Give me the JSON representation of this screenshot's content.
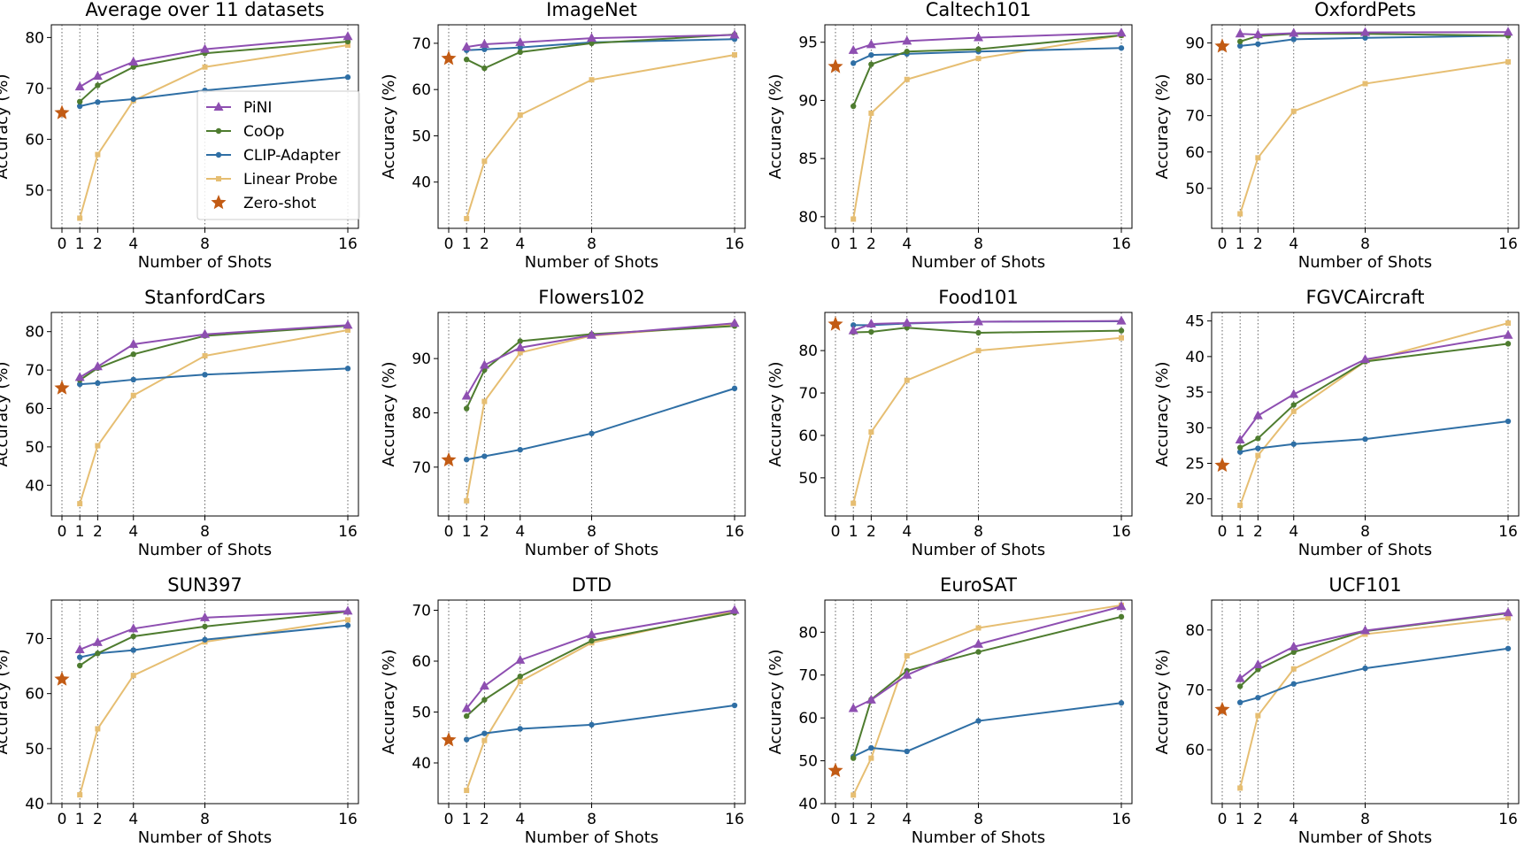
{
  "figure": {
    "x_ticks": [
      0,
      1,
      2,
      4,
      8,
      16
    ],
    "xlabel": "Number of Shots",
    "ylabel": "Accuracy (%)",
    "series_styles": {
      "PiNI": {
        "color": "#8e4fb1",
        "marker": "triangle"
      },
      "CoOp": {
        "color": "#4e7c2f",
        "marker": "circle"
      },
      "CLIP-Adapter": {
        "color": "#2f6fa5",
        "marker": "circle"
      },
      "Linear Probe": {
        "color": "#e6be72",
        "marker": "square"
      },
      "Zero-shot": {
        "color": "#c25b14",
        "marker": "star"
      }
    },
    "legend_labels": [
      "PiNI",
      "CoOp",
      "CLIP-Adapter",
      "Linear Probe",
      "Zero-shot"
    ]
  },
  "chart_data": [
    {
      "type": "line",
      "title": "Average over 11 datasets",
      "xlabel": "Number of Shots",
      "ylabel": "Accuracy (%)",
      "x": [
        1,
        2,
        4,
        8,
        16
      ],
      "yticks": [
        50,
        60,
        70,
        80
      ],
      "ylim": [
        42.5,
        82.5
      ],
      "zero_shot": 65.2,
      "legend": "center-right",
      "series": [
        {
          "name": "PiNI",
          "values": [
            70.3,
            72.4,
            75.2,
            77.7,
            80.2
          ]
        },
        {
          "name": "CoOp",
          "values": [
            67.4,
            70.6,
            74.2,
            76.9,
            79.2
          ]
        },
        {
          "name": "CLIP-Adapter",
          "values": [
            66.5,
            67.3,
            67.9,
            69.6,
            72.2
          ]
        },
        {
          "name": "Linear Probe",
          "values": [
            44.5,
            57.0,
            67.6,
            74.2,
            78.5
          ]
        }
      ]
    },
    {
      "type": "line",
      "title": "ImageNet",
      "xlabel": "Number of Shots",
      "ylabel": "Accuracy (%)",
      "x": [
        1,
        2,
        4,
        8,
        16
      ],
      "yticks": [
        40,
        50,
        60,
        70
      ],
      "ylim": [
        30,
        74
      ],
      "zero_shot": 66.7,
      "series": [
        {
          "name": "PiNI",
          "values": [
            69.2,
            69.8,
            70.2,
            71.1,
            71.8
          ]
        },
        {
          "name": "CoOp",
          "values": [
            66.5,
            64.6,
            68.1,
            70.0,
            71.9
          ]
        },
        {
          "name": "CLIP-Adapter",
          "values": [
            68.5,
            68.7,
            69.1,
            70.2,
            70.9
          ]
        },
        {
          "name": "Linear Probe",
          "values": [
            32.1,
            44.5,
            54.5,
            62.1,
            67.5
          ]
        }
      ]
    },
    {
      "type": "line",
      "title": "Caltech101",
      "xlabel": "Number of Shots",
      "ylabel": "Accuracy (%)",
      "x": [
        1,
        2,
        4,
        8,
        16
      ],
      "yticks": [
        80,
        85,
        90,
        95
      ],
      "ylim": [
        79,
        96.5
      ],
      "zero_shot": 92.9,
      "series": [
        {
          "name": "PiNI",
          "values": [
            94.3,
            94.8,
            95.1,
            95.4,
            95.8
          ]
        },
        {
          "name": "CoOp",
          "values": [
            89.5,
            93.1,
            94.2,
            94.4,
            95.6
          ]
        },
        {
          "name": "CLIP-Adapter",
          "values": [
            93.2,
            93.9,
            94.0,
            94.2,
            94.5
          ]
        },
        {
          "name": "Linear Probe",
          "values": [
            79.8,
            88.9,
            91.8,
            93.6,
            95.6
          ]
        }
      ]
    },
    {
      "type": "line",
      "title": "OxfordPets",
      "xlabel": "Number of Shots",
      "ylabel": "Accuracy (%)",
      "x": [
        1,
        2,
        4,
        8,
        16
      ],
      "yticks": [
        50,
        60,
        70,
        80,
        90
      ],
      "ylim": [
        39,
        95
      ],
      "zero_shot": 89.1,
      "series": [
        {
          "name": "PiNI",
          "values": [
            92.5,
            92.3,
            92.7,
            92.9,
            93.0
          ]
        },
        {
          "name": "CoOp",
          "values": [
            90.4,
            91.9,
            92.5,
            92.5,
            92.0
          ]
        },
        {
          "name": "CLIP-Adapter",
          "values": [
            89.2,
            89.7,
            91.0,
            91.4,
            92.0
          ]
        },
        {
          "name": "Linear Probe",
          "values": [
            43.0,
            58.4,
            71.2,
            78.8,
            84.8
          ]
        }
      ]
    },
    {
      "type": "line",
      "title": "StanfordCars",
      "xlabel": "Number of Shots",
      "ylabel": "Accuracy (%)",
      "x": [
        1,
        2,
        4,
        8,
        16
      ],
      "yticks": [
        40,
        50,
        60,
        70,
        80
      ],
      "ylim": [
        32,
        85
      ],
      "zero_shot": 65.3,
      "series": [
        {
          "name": "PiNI",
          "values": [
            68.1,
            70.9,
            76.7,
            79.3,
            81.7
          ]
        },
        {
          "name": "CoOp",
          "values": [
            67.4,
            70.5,
            74.1,
            78.9,
            81.5
          ]
        },
        {
          "name": "CLIP-Adapter",
          "values": [
            66.3,
            66.6,
            67.5,
            68.8,
            70.4
          ]
        },
        {
          "name": "Linear Probe",
          "values": [
            35.2,
            50.3,
            63.4,
            73.7,
            80.4
          ]
        }
      ]
    },
    {
      "type": "line",
      "title": "Flowers102",
      "xlabel": "Number of Shots",
      "ylabel": "Accuracy (%)",
      "x": [
        1,
        2,
        4,
        8,
        16
      ],
      "yticks": [
        70,
        80,
        90
      ],
      "ylim": [
        61,
        98.5
      ],
      "zero_shot": 71.3,
      "series": [
        {
          "name": "PiNI",
          "values": [
            83.1,
            88.8,
            92.0,
            94.3,
            96.5
          ]
        },
        {
          "name": "CoOp",
          "values": [
            80.8,
            87.9,
            93.2,
            94.5,
            96.0
          ]
        },
        {
          "name": "CLIP-Adapter",
          "values": [
            71.4,
            72.0,
            73.2,
            76.2,
            84.5
          ]
        },
        {
          "name": "Linear Probe",
          "values": [
            63.8,
            82.1,
            91.1,
            94.2,
            96.3
          ]
        }
      ]
    },
    {
      "type": "line",
      "title": "Food101",
      "xlabel": "Number of Shots",
      "ylabel": "Accuracy (%)",
      "x": [
        1,
        2,
        4,
        8,
        16
      ],
      "yticks": [
        50,
        60,
        70,
        80
      ],
      "ylim": [
        41,
        89
      ],
      "zero_shot": 86.2,
      "series": [
        {
          "name": "PiNI",
          "values": [
            84.7,
            86.3,
            86.5,
            86.8,
            87.0
          ]
        },
        {
          "name": "CoOp",
          "values": [
            84.3,
            84.4,
            85.4,
            84.2,
            84.7
          ]
        },
        {
          "name": "CLIP-Adapter",
          "values": [
            86.0,
            86.0,
            86.4,
            86.8,
            86.9
          ]
        },
        {
          "name": "Linear Probe",
          "values": [
            44.0,
            60.8,
            73.0,
            80.0,
            83.0
          ]
        }
      ]
    },
    {
      "type": "line",
      "title": "FGVCAircraft",
      "xlabel": "Number of Shots",
      "ylabel": "Accuracy (%)",
      "x": [
        1,
        2,
        4,
        8,
        16
      ],
      "yticks": [
        20,
        25,
        30,
        35,
        40,
        45
      ],
      "ylim": [
        17.6,
        46.2
      ],
      "zero_shot": 24.7,
      "series": [
        {
          "name": "PiNI",
          "values": [
            28.3,
            31.7,
            34.7,
            39.6,
            43.0
          ]
        },
        {
          "name": "CoOp",
          "values": [
            27.2,
            28.5,
            33.2,
            39.3,
            41.8
          ]
        },
        {
          "name": "CLIP-Adapter",
          "values": [
            26.6,
            27.1,
            27.7,
            28.4,
            30.9
          ]
        },
        {
          "name": "Linear Probe",
          "values": [
            19.1,
            26.1,
            32.3,
            39.3,
            44.7
          ]
        }
      ]
    },
    {
      "type": "line",
      "title": "SUN397",
      "xlabel": "Number of Shots",
      "ylabel": "Accuracy (%)",
      "x": [
        1,
        2,
        4,
        8,
        16
      ],
      "yticks": [
        40,
        50,
        60,
        70
      ],
      "ylim": [
        40,
        77
      ],
      "zero_shot": 62.6,
      "series": [
        {
          "name": "PiNI",
          "values": [
            68.0,
            69.3,
            71.8,
            73.8,
            75.0
          ]
        },
        {
          "name": "CoOp",
          "values": [
            65.1,
            67.3,
            70.4,
            72.2,
            74.9
          ]
        },
        {
          "name": "CLIP-Adapter",
          "values": [
            66.6,
            67.3,
            67.9,
            69.8,
            72.4
          ]
        },
        {
          "name": "Linear Probe",
          "values": [
            41.6,
            53.6,
            63.3,
            69.4,
            73.4
          ]
        }
      ]
    },
    {
      "type": "line",
      "title": "DTD",
      "xlabel": "Number of Shots",
      "ylabel": "Accuracy (%)",
      "x": [
        1,
        2,
        4,
        8,
        16
      ],
      "yticks": [
        40,
        50,
        60,
        70
      ],
      "ylim": [
        32,
        72
      ],
      "zero_shot": 44.5,
      "series": [
        {
          "name": "PiNI",
          "values": [
            50.7,
            55.1,
            60.2,
            65.2,
            70.0
          ]
        },
        {
          "name": "CoOp",
          "values": [
            49.2,
            52.4,
            57.0,
            64.0,
            69.5
          ]
        },
        {
          "name": "CLIP-Adapter",
          "values": [
            44.6,
            45.8,
            46.7,
            47.5,
            51.3
          ]
        },
        {
          "name": "Linear Probe",
          "values": [
            34.6,
            44.4,
            56.0,
            63.6,
            69.8
          ]
        }
      ]
    },
    {
      "type": "line",
      "title": "EuroSAT",
      "xlabel": "Number of Shots",
      "ylabel": "Accuracy (%)",
      "x": [
        1,
        2,
        4,
        8,
        16
      ],
      "yticks": [
        40,
        50,
        60,
        70,
        80
      ],
      "ylim": [
        40,
        87.5
      ],
      "zero_shot": 47.7,
      "series": [
        {
          "name": "PiNI",
          "values": [
            62.2,
            64.2,
            70.0,
            77.2,
            86.0
          ]
        },
        {
          "name": "CoOp",
          "values": [
            50.6,
            64.3,
            71.0,
            75.4,
            83.6
          ]
        },
        {
          "name": "CLIP-Adapter",
          "values": [
            51.0,
            53.0,
            52.2,
            59.3,
            63.5
          ]
        },
        {
          "name": "Linear Probe",
          "values": [
            42.0,
            50.6,
            74.5,
            81.0,
            86.3
          ]
        }
      ]
    },
    {
      "type": "line",
      "title": "UCF101",
      "xlabel": "Number of Shots",
      "ylabel": "Accuracy (%)",
      "x": [
        1,
        2,
        4,
        8,
        16
      ],
      "yticks": [
        60,
        70,
        80
      ],
      "ylim": [
        51,
        85
      ],
      "zero_shot": 66.7,
      "series": [
        {
          "name": "PiNI",
          "values": [
            71.9,
            74.2,
            77.2,
            79.9,
            82.9
          ]
        },
        {
          "name": "CoOp",
          "values": [
            70.6,
            73.4,
            76.3,
            79.8,
            82.8
          ]
        },
        {
          "name": "CLIP-Adapter",
          "values": [
            67.9,
            68.7,
            71.0,
            73.6,
            76.9
          ]
        },
        {
          "name": "Linear Probe",
          "values": [
            53.6,
            65.7,
            73.5,
            79.3,
            82.0
          ]
        }
      ]
    }
  ]
}
